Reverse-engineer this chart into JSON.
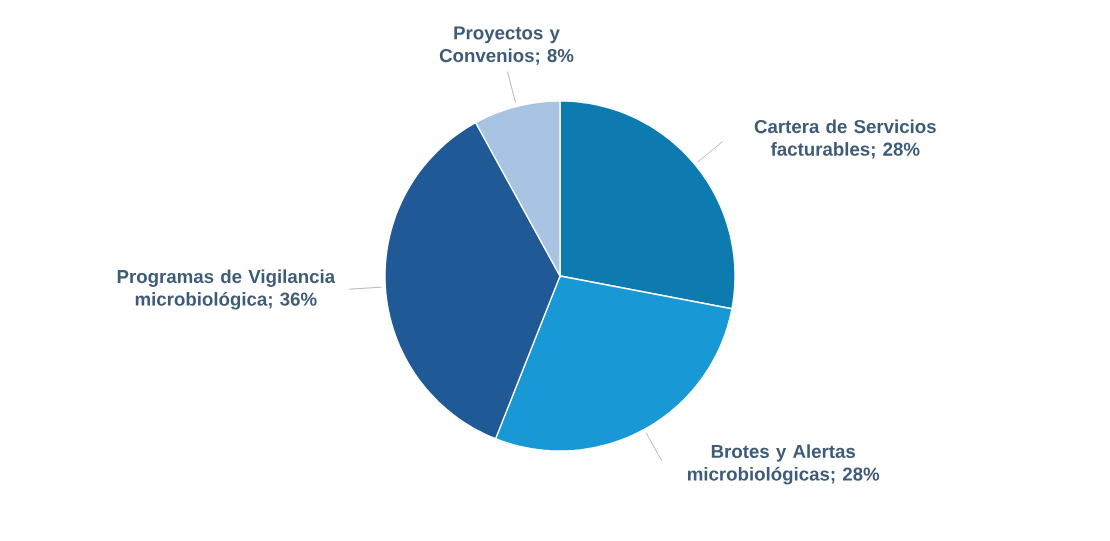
{
  "chart_data": {
    "type": "pie",
    "categories": [
      "Cartera de Servicios facturables",
      "Brotes y Alertas microbiológicas",
      "Programas de Vigilancia microbiológica",
      "Proyectos y Convenios"
    ],
    "values": [
      28,
      28,
      36,
      8
    ],
    "colors": [
      "#0e7bb0",
      "#1898d4",
      "#1f5a96",
      "#a9c4e2"
    ],
    "value_labels": [
      "; 28%",
      "; 28%",
      "; 36%",
      "; 8%"
    ]
  }
}
